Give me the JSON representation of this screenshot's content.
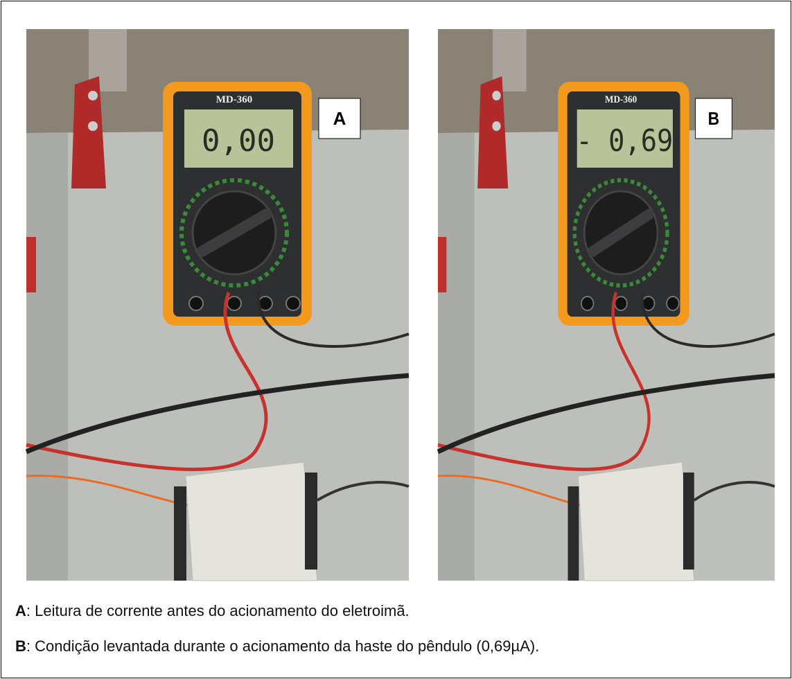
{
  "figure": {
    "panels": [
      {
        "label": "A",
        "model": "MD-360",
        "display": "0,00"
      },
      {
        "label": "B",
        "model": "MD-360",
        "display": "- 0,69"
      }
    ],
    "captions": [
      {
        "label": "A",
        "text": ": Leitura de corrente antes do acionamento do eletroimã."
      },
      {
        "label": "B",
        "text": ": Condição levantada durante o acionamento da haste do pêndulo (0,69µA)."
      }
    ]
  }
}
